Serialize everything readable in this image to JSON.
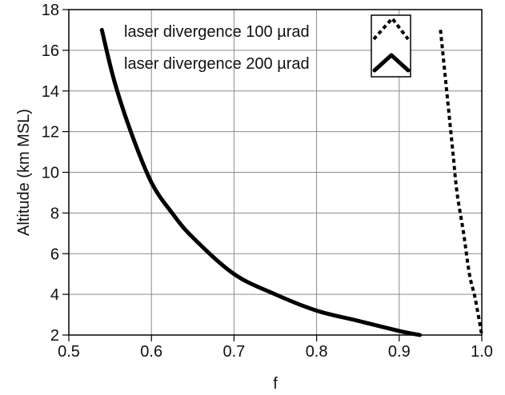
{
  "chart_data": {
    "type": "line",
    "title": "",
    "xlabel": "f",
    "ylabel": "Altitude  (km MSL)",
    "xlim": [
      0.5,
      1.0
    ],
    "ylim": [
      2,
      18
    ],
    "xticks": [
      0.5,
      0.6,
      0.7,
      0.8,
      0.9,
      1.0
    ],
    "xtick_labels": [
      "0.5",
      "0.6",
      "0.7",
      "0.8",
      "0.9",
      "1.0"
    ],
    "yticks": [
      2,
      4,
      6,
      8,
      10,
      12,
      14,
      16,
      18
    ],
    "ytick_labels": [
      "2",
      "4",
      "6",
      "8",
      "10",
      "12",
      "14",
      "16",
      "18"
    ],
    "grid": true,
    "legend_position": "top-right",
    "series": [
      {
        "name": "laser divergence 100 µrad",
        "style": "dotted",
        "color": "#000000",
        "points": [
          {
            "x": 0.95,
            "y": 17.0
          },
          {
            "x": 0.955,
            "y": 15.0
          },
          {
            "x": 0.96,
            "y": 13.0
          },
          {
            "x": 0.965,
            "y": 11.0
          },
          {
            "x": 0.97,
            "y": 9.0
          },
          {
            "x": 0.978,
            "y": 7.0
          },
          {
            "x": 0.985,
            "y": 5.0
          },
          {
            "x": 0.992,
            "y": 3.8
          },
          {
            "x": 1.0,
            "y": 2.0
          }
        ]
      },
      {
        "name": "laser divergence 200 µrad",
        "style": "solid",
        "color": "#000000",
        "points": [
          {
            "x": 0.54,
            "y": 17.0
          },
          {
            "x": 0.555,
            "y": 14.5
          },
          {
            "x": 0.575,
            "y": 12.0
          },
          {
            "x": 0.6,
            "y": 9.5
          },
          {
            "x": 0.625,
            "y": 8.0
          },
          {
            "x": 0.65,
            "y": 6.8
          },
          {
            "x": 0.7,
            "y": 5.0
          },
          {
            "x": 0.75,
            "y": 4.0
          },
          {
            "x": 0.8,
            "y": 3.2
          },
          {
            "x": 0.85,
            "y": 2.7
          },
          {
            "x": 0.9,
            "y": 2.2
          },
          {
            "x": 0.925,
            "y": 2.0
          }
        ]
      }
    ]
  }
}
